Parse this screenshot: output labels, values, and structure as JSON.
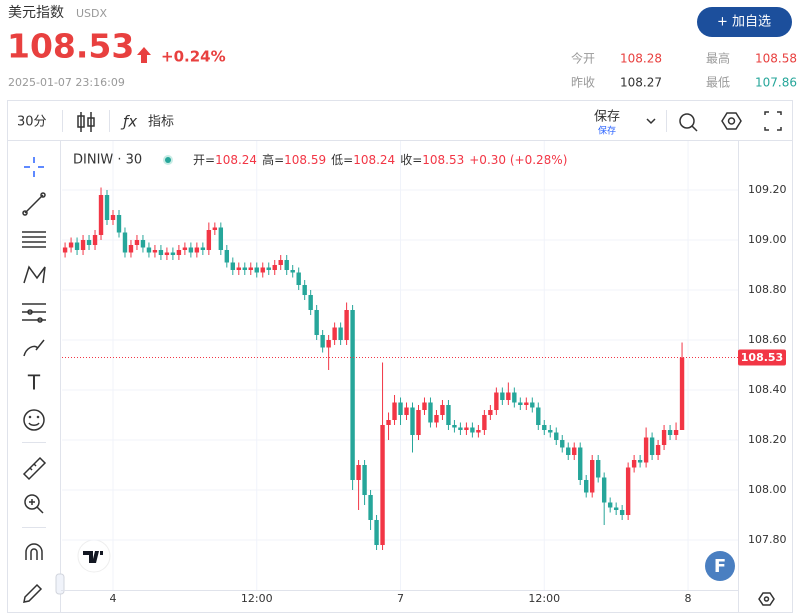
{
  "header": {
    "title": "美元指数",
    "code": "USDX",
    "price": "108.53",
    "change": "+0.24%",
    "time": "2025-01-07 23:16:09",
    "button": "+ 加自选",
    "stats": [
      {
        "label": "今开",
        "value": "108.28"
      },
      {
        "label": "最高",
        "value": "108.58"
      },
      {
        "label": "昨收",
        "value": "108.27"
      },
      {
        "label": "最低",
        "value": "107.86"
      }
    ]
  },
  "toolbar": {
    "interval": "30分",
    "indicators": "指标",
    "save": "保存",
    "save_sub": "保存"
  },
  "legend": {
    "symbol": "DINIW · 30",
    "items": [
      {
        "label": "开=",
        "value": "108.24"
      },
      {
        "label": "高=",
        "value": "108.59"
      },
      {
        "label": "低=",
        "value": "108.24"
      },
      {
        "label": "收=",
        "value": "108.53"
      }
    ],
    "change": "+0.30 (+0.28%)"
  },
  "badge": "F",
  "chart_data": {
    "type": "candlestick",
    "up_color": "#f23645",
    "down_color": "#26a69a",
    "categories": [
      null,
      null,
      null,
      null,
      null,
      null,
      null,
      null,
      "4",
      null,
      null,
      null,
      null,
      null,
      null,
      null,
      null,
      null,
      null,
      null,
      null,
      null,
      null,
      null,
      null,
      null,
      null,
      null,
      null,
      null,
      null,
      null,
      "12:00",
      null,
      null,
      null,
      null,
      null,
      null,
      null,
      null,
      null,
      null,
      null,
      null,
      null,
      null,
      null,
      null,
      null,
      null,
      null,
      null,
      null,
      null,
      null,
      "7",
      null,
      null,
      null,
      null,
      null,
      null,
      null,
      null,
      null,
      null,
      null,
      null,
      null,
      null,
      null,
      null,
      null,
      null,
      null,
      null,
      null,
      null,
      null,
      "12:00",
      null,
      null,
      null,
      null,
      null,
      null,
      null,
      null,
      null,
      null,
      null,
      null,
      null,
      null,
      null,
      null,
      null,
      null,
      null,
      null,
      null,
      null,
      null,
      "8"
    ],
    "open": [
      108.95,
      108.97,
      108.99,
      108.96,
      109.0,
      108.98,
      109.02,
      109.18,
      109.08,
      109.1,
      109.03,
      108.95,
      108.98,
      109.0,
      108.97,
      108.95,
      108.96,
      108.94,
      108.95,
      108.94,
      108.96,
      108.97,
      108.95,
      108.97,
      108.96,
      109.04,
      109.05,
      108.96,
      108.91,
      108.88,
      108.89,
      108.88,
      108.89,
      108.87,
      108.89,
      108.88,
      108.9,
      108.92,
      108.88,
      108.87,
      108.82,
      108.78,
      108.72,
      108.62,
      108.57,
      108.6,
      108.65,
      108.6,
      108.72,
      108.04,
      108.1,
      107.98,
      107.88,
      107.78,
      108.26,
      108.28,
      108.35,
      108.3,
      108.33,
      108.22,
      108.32,
      108.35,
      108.27,
      108.3,
      108.34,
      108.26,
      108.25,
      108.24,
      108.25,
      108.23,
      108.24,
      108.3,
      108.32,
      108.39,
      108.36,
      108.39,
      108.35,
      108.34,
      108.35,
      108.33,
      108.26,
      108.24,
      108.23,
      108.2,
      108.17,
      108.14,
      108.17,
      108.04,
      107.99,
      108.12,
      108.05,
      107.95,
      107.93,
      107.92,
      107.9,
      108.09,
      108.12,
      108.11,
      108.21,
      108.14,
      108.18,
      108.24,
      108.22,
      108.24,
      null
    ],
    "high": [
      108.99,
      109.01,
      109.01,
      109.02,
      109.02,
      109.04,
      109.21,
      109.2,
      109.12,
      109.12,
      109.05,
      109.0,
      109.02,
      109.02,
      108.99,
      108.98,
      108.98,
      108.97,
      108.97,
      108.98,
      108.99,
      108.99,
      108.99,
      108.99,
      109.07,
      109.07,
      109.07,
      108.98,
      108.93,
      108.91,
      108.91,
      108.91,
      108.91,
      108.91,
      108.91,
      108.92,
      108.94,
      108.94,
      108.9,
      108.89,
      108.84,
      108.8,
      108.74,
      108.64,
      108.62,
      108.67,
      108.67,
      108.75,
      108.74,
      108.12,
      108.12,
      108.0,
      107.9,
      108.51,
      108.31,
      108.38,
      108.37,
      108.35,
      108.35,
      108.34,
      108.37,
      108.37,
      108.32,
      108.36,
      108.36,
      108.28,
      108.27,
      108.27,
      108.27,
      108.26,
      108.32,
      108.34,
      108.41,
      108.41,
      108.43,
      108.41,
      108.37,
      108.37,
      108.37,
      108.35,
      108.28,
      108.26,
      108.25,
      108.22,
      108.19,
      108.19,
      108.19,
      108.06,
      108.14,
      108.14,
      108.07,
      107.97,
      107.95,
      107.94,
      108.11,
      108.14,
      108.14,
      108.25,
      108.23,
      108.2,
      108.26,
      108.26,
      108.27,
      108.59,
      null
    ],
    "low": [
      108.93,
      108.95,
      108.94,
      108.94,
      108.96,
      108.96,
      109.0,
      109.06,
      109.06,
      109.01,
      108.93,
      108.93,
      108.96,
      108.95,
      108.93,
      108.93,
      108.92,
      108.92,
      108.92,
      108.92,
      108.94,
      108.93,
      108.93,
      108.94,
      108.94,
      109.02,
      108.94,
      108.89,
      108.86,
      108.86,
      108.86,
      108.86,
      108.85,
      108.85,
      108.86,
      108.86,
      108.88,
      108.86,
      108.85,
      108.8,
      108.76,
      108.7,
      108.6,
      108.55,
      108.48,
      108.58,
      108.58,
      108.58,
      108.0,
      107.92,
      107.94,
      107.84,
      107.76,
      107.76,
      108.2,
      108.26,
      108.26,
      108.28,
      108.15,
      108.2,
      108.3,
      108.25,
      108.25,
      108.28,
      108.24,
      108.23,
      108.22,
      108.22,
      108.21,
      108.21,
      108.22,
      108.28,
      108.3,
      108.34,
      108.34,
      108.33,
      108.32,
      108.32,
      108.31,
      108.24,
      108.22,
      108.21,
      108.18,
      108.15,
      108.12,
      108.12,
      108.02,
      107.97,
      107.97,
      108.03,
      107.86,
      107.91,
      107.9,
      107.88,
      107.88,
      108.07,
      108.09,
      108.09,
      108.12,
      108.12,
      108.16,
      108.2,
      108.2,
      108.24,
      null
    ],
    "close": [
      108.97,
      108.99,
      108.96,
      109.0,
      108.98,
      109.02,
      109.18,
      109.08,
      109.1,
      109.03,
      108.95,
      108.98,
      109.0,
      108.97,
      108.95,
      108.96,
      108.94,
      108.95,
      108.94,
      108.96,
      108.97,
      108.95,
      108.97,
      108.96,
      109.04,
      109.05,
      108.96,
      108.91,
      108.88,
      108.89,
      108.88,
      108.89,
      108.87,
      108.89,
      108.88,
      108.9,
      108.92,
      108.88,
      108.87,
      108.82,
      108.78,
      108.72,
      108.62,
      108.57,
      108.6,
      108.65,
      108.6,
      108.72,
      108.04,
      108.1,
      107.98,
      107.88,
      107.78,
      108.26,
      108.28,
      108.35,
      108.3,
      108.33,
      108.22,
      108.32,
      108.35,
      108.27,
      108.3,
      108.34,
      108.26,
      108.25,
      108.24,
      108.25,
      108.23,
      108.24,
      108.3,
      108.32,
      108.39,
      108.36,
      108.39,
      108.35,
      108.34,
      108.35,
      108.33,
      108.26,
      108.24,
      108.23,
      108.2,
      108.17,
      108.14,
      108.17,
      108.04,
      107.99,
      108.12,
      108.05,
      107.95,
      107.93,
      107.92,
      107.9,
      108.09,
      108.12,
      108.11,
      108.21,
      108.14,
      108.18,
      108.24,
      108.22,
      108.24,
      108.53,
      null
    ],
    "last_price": 108.53,
    "ylim": [
      107.6,
      109.38
    ],
    "yticks": [
      {
        "value": 107.8,
        "label": "107.80"
      },
      {
        "value": 108.0,
        "label": "108.00"
      },
      {
        "value": 108.2,
        "label": "108.20"
      },
      {
        "value": 108.4,
        "label": "108.40"
      },
      {
        "value": 108.6,
        "label": "108.60"
      },
      {
        "value": 108.8,
        "label": "108.80"
      },
      {
        "value": 109.0,
        "label": "109.00"
      },
      {
        "value": 109.2,
        "label": "109.20"
      }
    ],
    "grid": true
  }
}
